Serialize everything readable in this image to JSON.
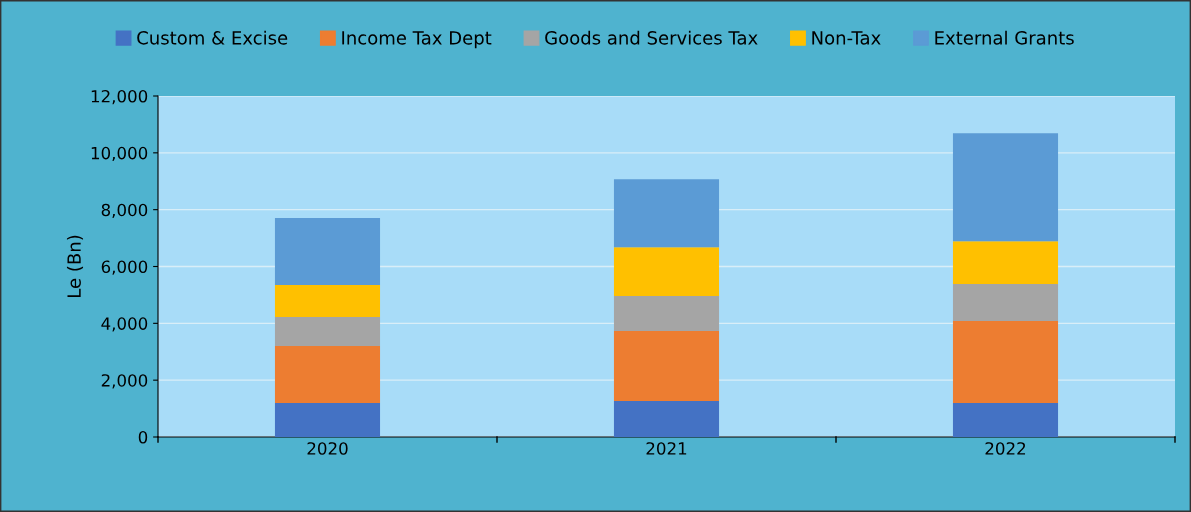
{
  "chart_data": {
    "type": "bar",
    "stacked": true,
    "ylabel": "Le (Bn)",
    "categories": [
      "2020",
      "2021",
      "2022"
    ],
    "series": [
      {
        "name": "Custom & Excise",
        "color": "#4472c4",
        "values": [
          1200,
          1270,
          1200
        ]
      },
      {
        "name": "Income Tax Dept",
        "color": "#ed7d31",
        "values": [
          2000,
          2460,
          2880
        ]
      },
      {
        "name": "Goods and Services Tax",
        "color": "#a5a5a5",
        "values": [
          1020,
          1230,
          1300
        ]
      },
      {
        "name": "Non-Tax",
        "color": "#ffc000",
        "values": [
          1130,
          1720,
          1510
        ]
      },
      {
        "name": "External Grants",
        "color": "#5b9bd5",
        "values": [
          2360,
          2390,
          3800
        ]
      }
    ],
    "ylim": [
      0,
      12000
    ],
    "yticks": [
      {
        "value": 0,
        "label": "0"
      },
      {
        "value": 2000,
        "label": "2,000"
      },
      {
        "value": 4000,
        "label": "4,000"
      },
      {
        "value": 6000,
        "label": "6,000"
      },
      {
        "value": 8000,
        "label": "8,000"
      },
      {
        "value": 10000,
        "label": "10,000"
      },
      {
        "value": 12000,
        "label": "12,000"
      }
    ],
    "grid": "y",
    "legend": "top"
  }
}
